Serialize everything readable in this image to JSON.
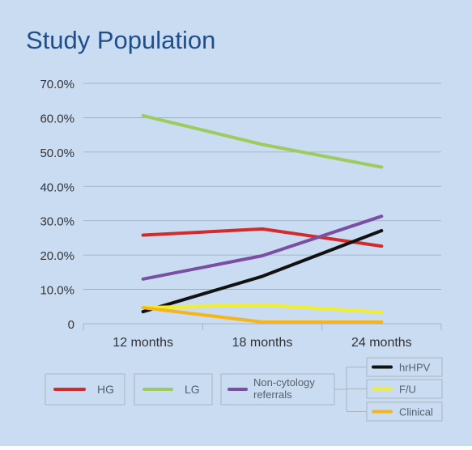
{
  "title": "Study Population",
  "colors": {
    "background": "#c9dcf1",
    "title": "#1f4e8c",
    "axis_text": "#333333",
    "grid": "#9aaabb",
    "legend_border": "#aab4bf",
    "legend_text": "#55606b"
  },
  "chart_data": {
    "type": "line",
    "title": "Study Population",
    "categories": [
      "12 months",
      "18 months",
      "24 months"
    ],
    "y_ticks": [
      "70.0%",
      "60.0%",
      "50.0%",
      "40.0%",
      "30.0%",
      "20.0%",
      "10.0%",
      "0"
    ],
    "ylim": [
      0,
      70
    ],
    "grid": true,
    "legend_position": "bottom",
    "series": [
      {
        "name": "HG",
        "color": "#d42a2a",
        "values": [
          25.8,
          27.6,
          22.6
        ]
      },
      {
        "name": "LG",
        "color": "#9ecb5e",
        "values": [
          60.6,
          52.2,
          45.6
        ]
      },
      {
        "name": "Non-cytology referrals",
        "color": "#7a4ea3",
        "values": [
          13.0,
          19.8,
          31.3
        ]
      },
      {
        "name": "hrHPV",
        "color": "#111111",
        "values": [
          3.5,
          13.8,
          27.1
        ]
      },
      {
        "name": "F/U",
        "color": "#f2ee2a",
        "values": [
          4.7,
          5.5,
          3.4
        ]
      },
      {
        "name": "Clinical",
        "color": "#f7b518",
        "values": [
          4.7,
          0.5,
          0.5
        ]
      }
    ]
  }
}
